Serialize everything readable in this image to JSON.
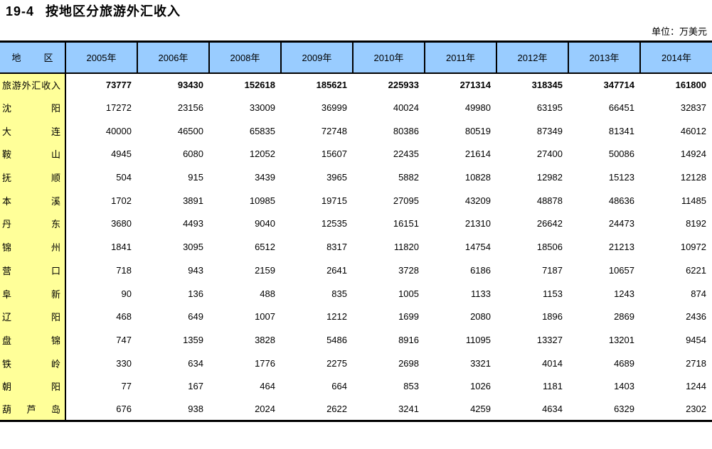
{
  "header": {
    "number": "19-4",
    "title": "按地区分旅游外汇收入",
    "unit_note": "单位：万美元"
  },
  "table": {
    "region_header": "地区",
    "year_headers": [
      "2005年",
      "2006年",
      "2008年",
      "2009年",
      "2010年",
      "2011年",
      "2012年",
      "2013年",
      "2014年"
    ],
    "rows": [
      {
        "region": "旅游外汇收入",
        "bold": true,
        "values": [
          73777,
          93430,
          152618,
          185621,
          225933,
          271314,
          318345,
          347714,
          161800
        ]
      },
      {
        "region": "沈阳",
        "bold": false,
        "values": [
          17272,
          23156,
          33009,
          36999,
          40024,
          49980,
          63195,
          66451,
          32837
        ]
      },
      {
        "region": "大连",
        "bold": false,
        "values": [
          40000,
          46500,
          65835,
          72748,
          80386,
          80519,
          87349,
          81341,
          46012
        ]
      },
      {
        "region": "鞍山",
        "bold": false,
        "values": [
          4945,
          6080,
          12052,
          15607,
          22435,
          21614,
          27400,
          50086,
          14924
        ]
      },
      {
        "region": "抚顺",
        "bold": false,
        "values": [
          504,
          915,
          3439,
          3965,
          5882,
          10828,
          12982,
          15123,
          12128
        ]
      },
      {
        "region": "本溪",
        "bold": false,
        "values": [
          1702,
          3891,
          10985,
          19715,
          27095,
          43209,
          48878,
          48636,
          11485
        ]
      },
      {
        "region": "丹东",
        "bold": false,
        "values": [
          3680,
          4493,
          9040,
          12535,
          16151,
          21310,
          26642,
          24473,
          8192
        ]
      },
      {
        "region": "锦州",
        "bold": false,
        "values": [
          1841,
          3095,
          6512,
          8317,
          11820,
          14754,
          18506,
          21213,
          10972
        ]
      },
      {
        "region": "营口",
        "bold": false,
        "values": [
          718,
          943,
          2159,
          2641,
          3728,
          6186,
          7187,
          10657,
          6221
        ]
      },
      {
        "region": "阜新",
        "bold": false,
        "values": [
          90,
          136,
          488,
          835,
          1005,
          1133,
          1153,
          1243,
          874
        ]
      },
      {
        "region": "辽阳",
        "bold": false,
        "values": [
          468,
          649,
          1007,
          1212,
          1699,
          2080,
          1896,
          2869,
          2436
        ]
      },
      {
        "region": "盘锦",
        "bold": false,
        "values": [
          747,
          1359,
          3828,
          5486,
          8916,
          11095,
          13327,
          13201,
          9454
        ]
      },
      {
        "region": "铁岭",
        "bold": false,
        "values": [
          330,
          634,
          1776,
          2275,
          2698,
          3321,
          4014,
          4689,
          2718
        ]
      },
      {
        "region": "朝阳",
        "bold": false,
        "values": [
          77,
          167,
          464,
          664,
          853,
          1026,
          1181,
          1403,
          1244
        ]
      },
      {
        "region": "葫芦岛",
        "bold": false,
        "values": [
          676,
          938,
          2024,
          2622,
          3241,
          4259,
          4634,
          6329,
          2302
        ]
      }
    ]
  },
  "colors": {
    "header_bg": "#99CCFF",
    "region_column_bg": "#FFFF99",
    "border": "#000000",
    "page_bg": "#FFFFFF"
  }
}
